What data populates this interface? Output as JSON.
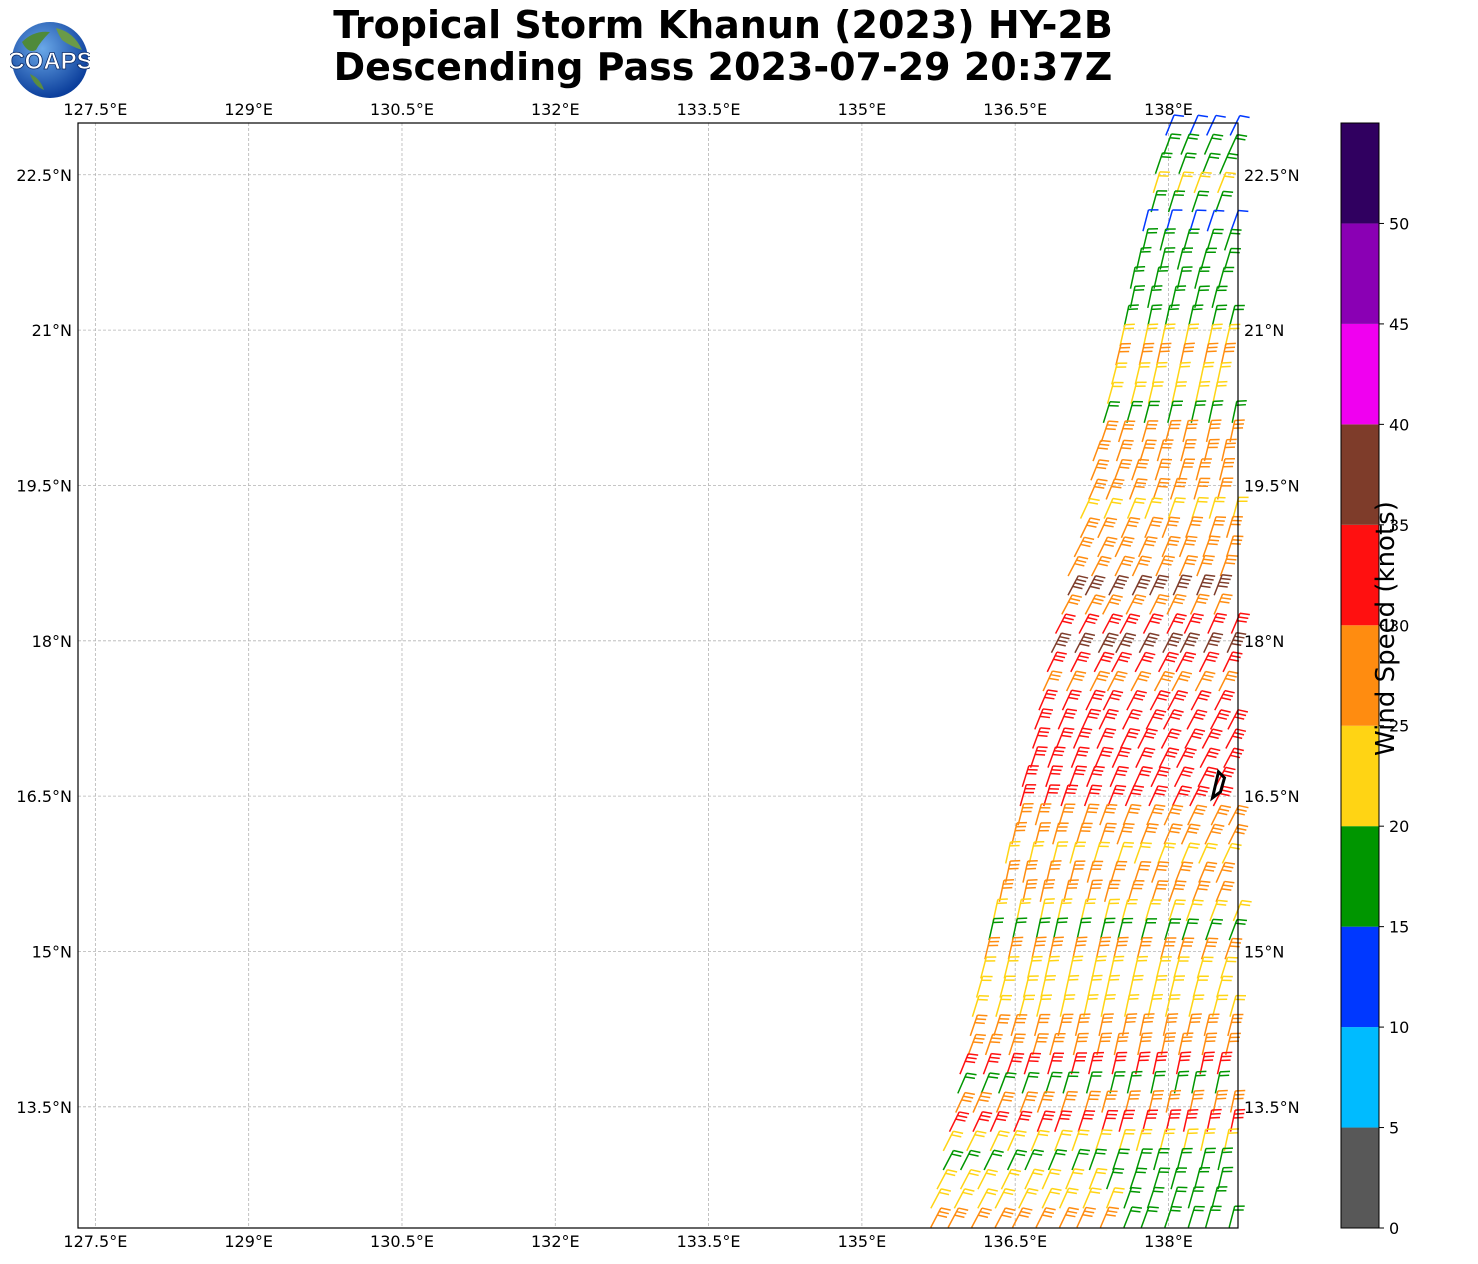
{
  "title": {
    "line1": "Tropical Storm Khanun (2023) HY-2B",
    "line2": "Descending Pass 2023-07-29 20:37Z"
  },
  "logo": {
    "text": "COAPS",
    "icon": "globe-logo-icon"
  },
  "map": {
    "lon_ticks": [
      "127.5°E",
      "129°E",
      "130.5°E",
      "132°E",
      "133.5°E",
      "135°E",
      "136.5°E",
      "138°E"
    ],
    "lon_values": [
      127.5,
      129,
      130.5,
      132,
      133.5,
      135,
      136.5,
      138
    ],
    "lat_ticks": [
      "22.5°N",
      "21°N",
      "19.5°N",
      "18°N",
      "16.5°N",
      "15°N",
      "13.5°N"
    ],
    "lat_values": [
      22.5,
      21,
      19.5,
      18,
      16.5,
      15,
      13.5
    ],
    "extent": {
      "lon": [
        127.33,
        138.68
      ],
      "lat": [
        12.33,
        23.0
      ]
    },
    "grid": true
  },
  "colorbar": {
    "label": "Wind Speed (knots)",
    "ticks": [
      "0",
      "5",
      "10",
      "15",
      "20",
      "25",
      "30",
      "35",
      "40",
      "45",
      "50"
    ],
    "bins": [
      {
        "min": 0,
        "max": 5,
        "color": "#585858"
      },
      {
        "min": 5,
        "max": 10,
        "color": "#00bbff"
      },
      {
        "min": 10,
        "max": 15,
        "color": "#0038ff"
      },
      {
        "min": 15,
        "max": 20,
        "color": "#009600"
      },
      {
        "min": 20,
        "max": 25,
        "color": "#ffd414"
      },
      {
        "min": 25,
        "max": 30,
        "color": "#ff8c10"
      },
      {
        "min": 30,
        "max": 35,
        "color": "#ff1010"
      },
      {
        "min": 35,
        "max": 40,
        "color": "#7e3c2a"
      },
      {
        "min": 40,
        "max": 45,
        "color": "#f000f0"
      },
      {
        "min": 45,
        "max": 50,
        "color": "#8a00b4"
      },
      {
        "min": 50,
        "max": 55,
        "color": "#300060"
      }
    ]
  },
  "swath": {
    "edge_west_lon": {
      "lat_13": 135.8,
      "lat_23": 138.0
    },
    "edge_east_lon": 138.68,
    "storm_center": {
      "lat": 16.6,
      "lon": 138.45
    },
    "wind_regions": [
      {
        "lat_min": 21.9,
        "lat_max": 23.0,
        "speed": 18
      },
      {
        "lat_min": 19.9,
        "lat_max": 21.9,
        "speed": 23
      },
      {
        "lat_min": 18.5,
        "lat_max": 19.9,
        "speed": 27
      },
      {
        "lat_min": 16.3,
        "lat_max": 18.5,
        "speed": 32
      },
      {
        "lat_min": 15.6,
        "lat_max": 16.3,
        "speed": 28
      },
      {
        "lat_min": 14.3,
        "lat_max": 15.6,
        "speed": 23
      },
      {
        "lat_min": 13.1,
        "lat_max": 14.3,
        "speed": 27
      },
      {
        "lat_min": 12.33,
        "lat_max": 13.1,
        "speed": 22
      }
    ]
  }
}
